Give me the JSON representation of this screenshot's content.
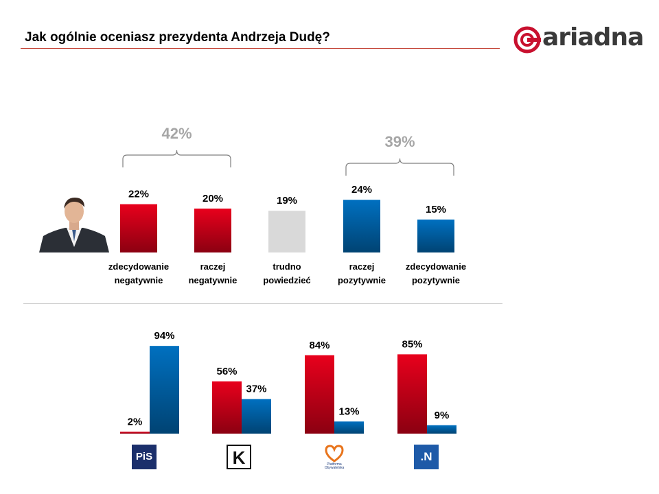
{
  "title": "Jak ogólnie oceniasz prezydenta Andrzeja Dudę?",
  "brand": "ariadna",
  "colors": {
    "negative": "#e8001c",
    "neutral": "#d9d9d9",
    "positive": "#0070c0",
    "accent": "#c0392b"
  },
  "chart_data": [
    {
      "type": "bar",
      "categories": [
        "zdecydowanie negatywnie",
        "raczej negatywnie",
        "trudno powiedzieć",
        "raczej pozytywnie",
        "zdecydowanie pozytywnie"
      ],
      "category_lines": [
        [
          "zdecydowanie",
          "negatywnie"
        ],
        [
          "raczej",
          "negatywnie"
        ],
        [
          "trudno",
          "powiedzieć"
        ],
        [
          "raczej",
          "pozytywnie"
        ],
        [
          "zdecydowanie",
          "pozytywnie"
        ]
      ],
      "values": [
        22,
        20,
        19,
        24,
        15
      ],
      "value_labels": [
        "22%",
        "20%",
        "19%",
        "24%",
        "15%"
      ],
      "colors": [
        "#e8001c",
        "#e8001c",
        "#d9d9d9",
        "#0070c0",
        "#0070c0"
      ],
      "groups": [
        {
          "label": "42%",
          "value": 42,
          "from": 0,
          "to": 1
        },
        {
          "label": "39%",
          "value": 39,
          "from": 3,
          "to": 4
        }
      ],
      "ylim": [
        0,
        30
      ]
    },
    {
      "type": "bar",
      "categories": [
        "PiS",
        "Kukiz'15",
        "Platforma Obywatelska",
        ".Nowoczesna"
      ],
      "series": [
        {
          "values": [
            2,
            56,
            84,
            85
          ],
          "labels": [
            "2%",
            "56%",
            "84%",
            "85%"
          ],
          "color": "#e8001c"
        },
        {
          "values": [
            94,
            37,
            13,
            9
          ],
          "labels": [
            "94%",
            "37%",
            "13%",
            "9%"
          ],
          "color": "#0070c0"
        }
      ],
      "ylim": [
        0,
        100
      ]
    }
  ],
  "party_logos": {
    "pis": {
      "text": "PiS",
      "icon": "pis-logo-icon"
    },
    "kukiz": {
      "text": "K",
      "icon": "kukiz-logo-icon"
    },
    "po": {
      "text": "Platforma Obywatelska",
      "icon": "po-logo-icon"
    },
    "nowoczesna": {
      "text": ".N",
      "icon": "nowoczesna-logo-icon"
    }
  }
}
